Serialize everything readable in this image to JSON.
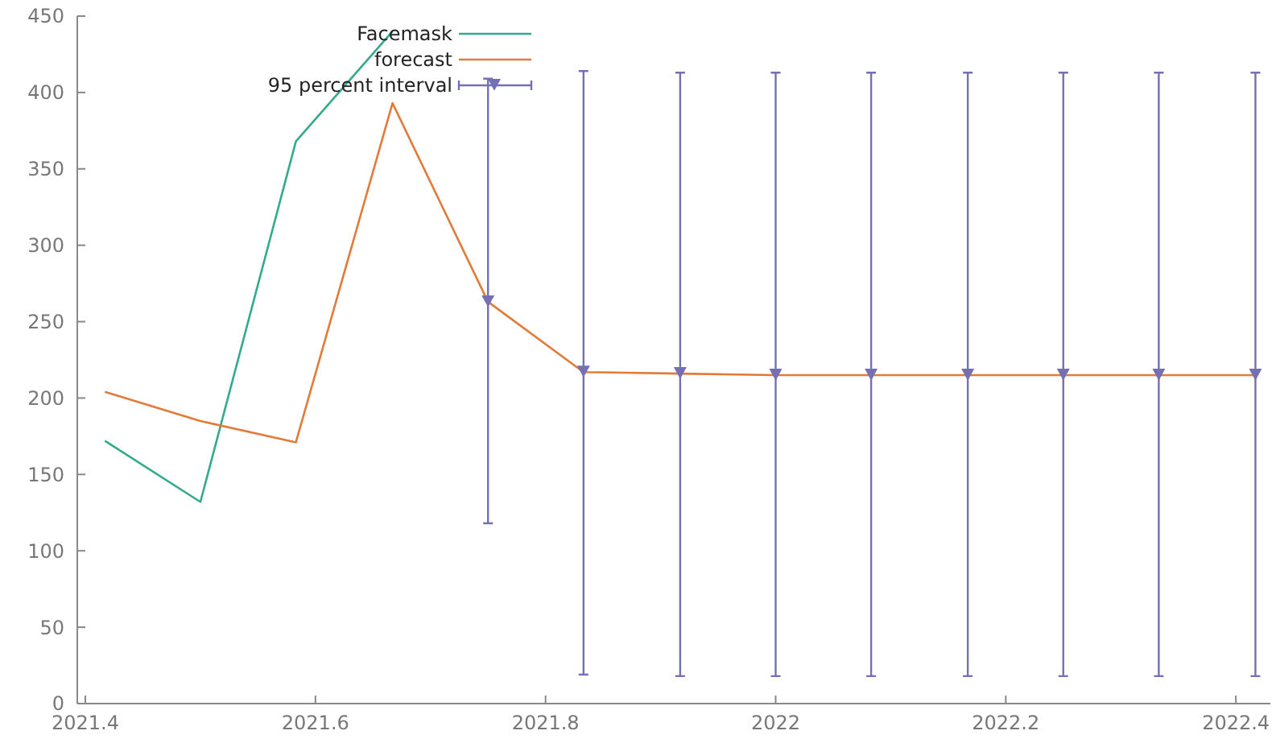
{
  "chart_data": {
    "type": "line",
    "xlim": [
      2021.393,
      2022.43
    ],
    "ylim": [
      0,
      450
    ],
    "xticks": [
      2021.4,
      2021.6,
      2021.8,
      2022,
      2022.2,
      2022.4
    ],
    "yticks": [
      0,
      50,
      100,
      150,
      200,
      250,
      300,
      350,
      400,
      450
    ],
    "grid": false,
    "legend": "top left",
    "series": [
      {
        "name": "Facemask",
        "color": "#33aa8c",
        "x": [
          2021.417,
          2021.5,
          2021.583,
          2021.667
        ],
        "values": [
          172,
          132,
          368,
          440
        ]
      },
      {
        "name": "forecast",
        "color": "#e07b39",
        "x": [
          2021.417,
          2021.5,
          2021.583,
          2021.667,
          2021.75,
          2021.833,
          2021.917,
          2022,
          2022.083,
          2022.167,
          2022.25,
          2022.333,
          2022.417
        ],
        "values": [
          204,
          185,
          171,
          393,
          263,
          217,
          216,
          215,
          215,
          215,
          215,
          215,
          215
        ]
      },
      {
        "name": "95 percent interval",
        "color": "#7570b3",
        "type": "scatter",
        "marker": "triangle",
        "x": [
          2021.75,
          2021.833,
          2021.917,
          2022,
          2022.083,
          2022.167,
          2022.25,
          2022.333,
          2022.417
        ],
        "values": [
          263,
          217,
          216,
          215,
          215,
          215,
          215,
          215,
          215
        ],
        "errors": [
          [
            118,
            409
          ],
          [
            19,
            414
          ],
          [
            18,
            413
          ],
          [
            18,
            413
          ],
          [
            18,
            413
          ],
          [
            18,
            413
          ],
          [
            18,
            413
          ],
          [
            18,
            413
          ],
          [
            18,
            413
          ]
        ]
      }
    ]
  }
}
